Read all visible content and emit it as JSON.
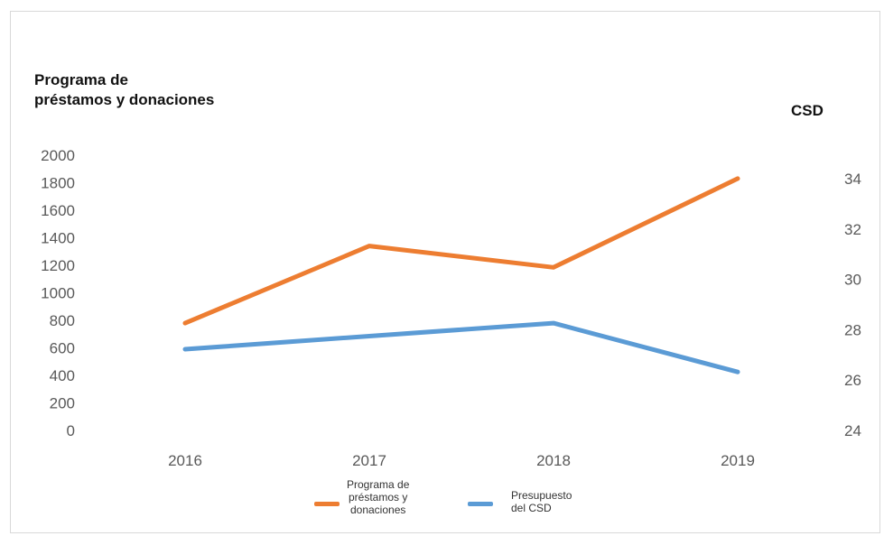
{
  "chart_data": {
    "type": "line",
    "categories": [
      "2016",
      "2017",
      "2018",
      "2019"
    ],
    "y_left_label_lines": [
      "Programa de",
      "préstamos y donaciones"
    ],
    "y_right_label": "CSD",
    "y_left_ticks": [
      "0",
      "200",
      "400",
      "600",
      "800",
      "1000",
      "1200",
      "1400",
      "1600",
      "1800",
      "2000"
    ],
    "y_right_ticks": [
      "24",
      "26",
      "28",
      "30",
      "32",
      "34"
    ],
    "ylim_left": [
      0,
      2000
    ],
    "ylim_right": [
      24,
      35.5
    ],
    "grid": false,
    "legend_position": "bottom",
    "series": [
      {
        "name_lines": [
          "Programa de",
          "préstamos y",
          "donaciones"
        ],
        "axis": "left",
        "color": "#ED7D31",
        "values": [
          780,
          1340,
          1185,
          1830
        ]
      },
      {
        "name_lines": [
          "Presupuesto",
          "del CSD"
        ],
        "axis": "left",
        "color": "#5B9BD5",
        "values": [
          590,
          685,
          780,
          425
        ]
      }
    ]
  }
}
